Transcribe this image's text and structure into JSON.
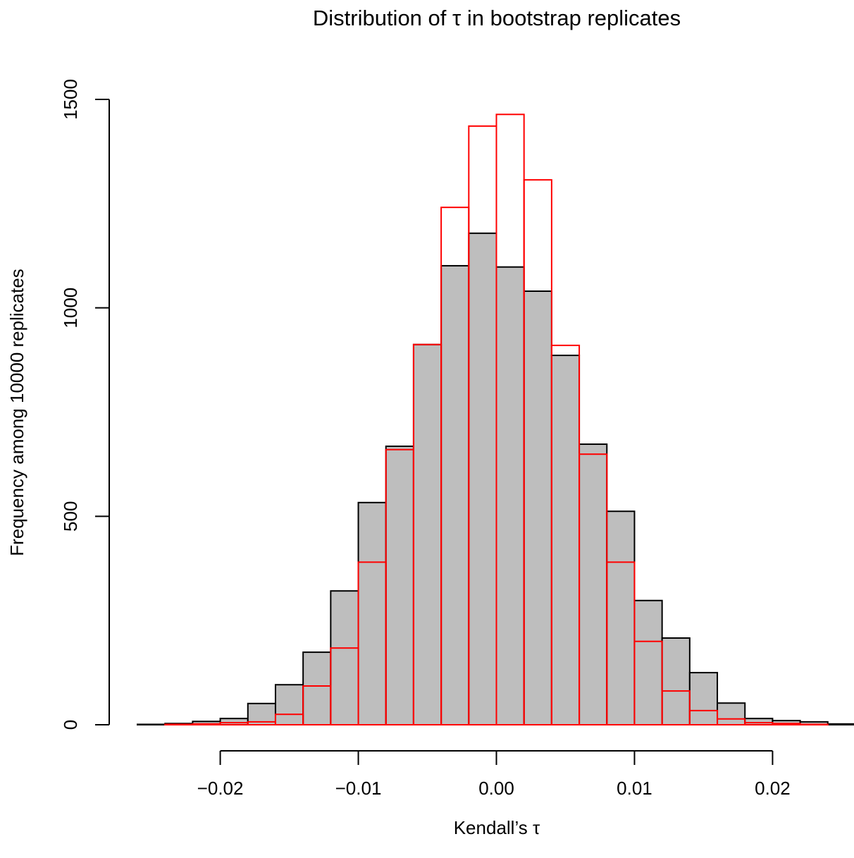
{
  "chart_data": {
    "type": "histogram",
    "title": "Distribution of τ in bootstrap replicates",
    "xlabel": "Kendall’s τ",
    "ylabel": "Frequency among 10000 replicates",
    "bins": [
      -0.026,
      -0.024,
      -0.022,
      -0.02,
      -0.018,
      -0.016,
      -0.014,
      -0.012,
      -0.01,
      -0.008,
      -0.006,
      -0.004,
      -0.002,
      0,
      0.002,
      0.004,
      0.006,
      0.008,
      0.01,
      0.012,
      0.014,
      0.016,
      0.018,
      0.02,
      0.022,
      0.024,
      0.026
    ],
    "series": [
      {
        "color": "#000000",
        "fill": "#bebebe",
        "values": [
          1,
          3,
          8,
          15,
          51,
          96,
          174,
          321,
          533,
          668,
          912,
          1101,
          1179,
          1098,
          1040,
          886,
          673,
          512,
          298,
          208,
          125,
          52,
          15,
          10,
          7,
          2
        ]
      },
      {
        "color": "#ff0000",
        "fill": "none",
        "values": [
          0,
          1,
          2,
          5,
          7,
          25,
          93,
          184,
          390,
          660,
          912,
          1241,
          1436,
          1464,
          1307,
          910,
          649,
          390,
          200,
          81,
          34,
          14,
          5,
          3,
          1,
          0
        ]
      }
    ],
    "xlim": [
      -0.026,
      0.026
    ],
    "ylim": [
      0,
      1500
    ],
    "xticks": [
      {
        "value": -0.02,
        "label": "−0.02"
      },
      {
        "value": -0.01,
        "label": "−0.01"
      },
      {
        "value": 0,
        "label": "0.00"
      },
      0.01,
      0.02
    ],
    "yticks": [
      0,
      500,
      1000,
      1500
    ]
  }
}
